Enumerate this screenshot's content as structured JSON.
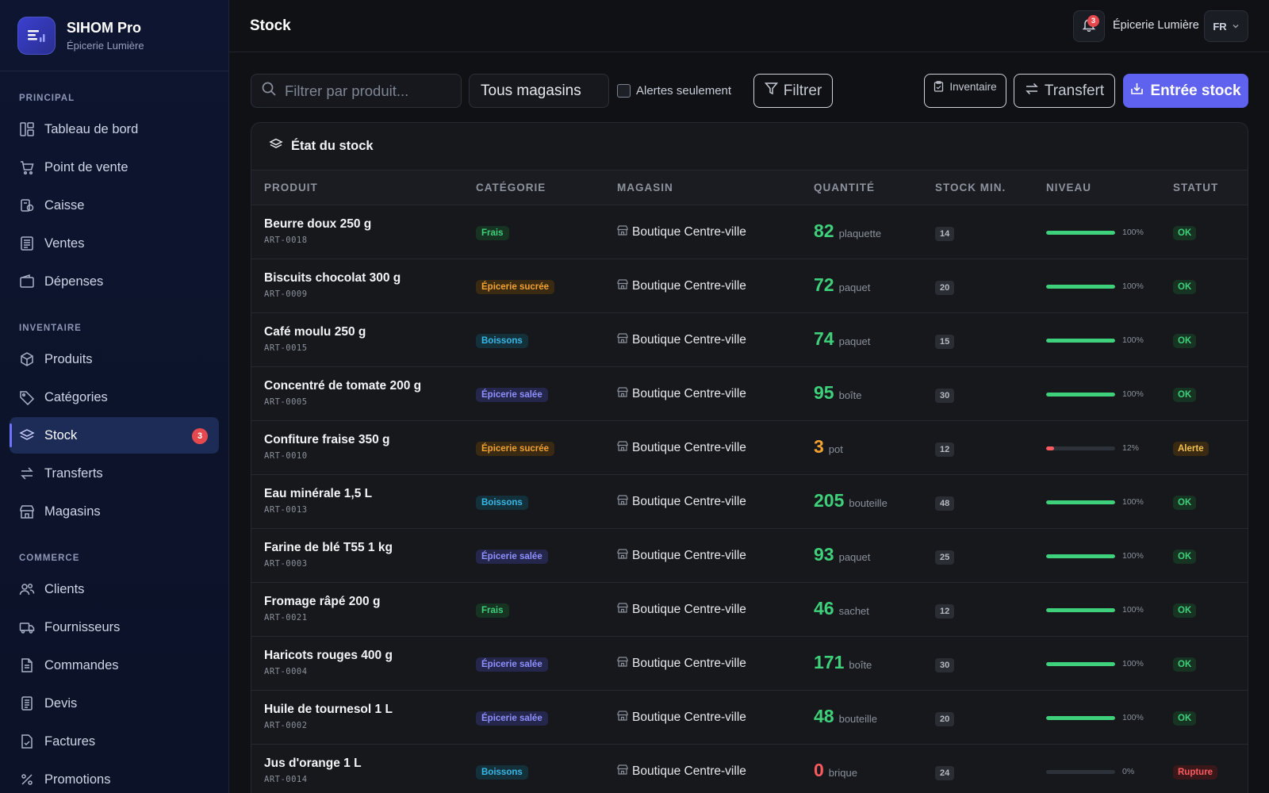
{
  "brand": {
    "title": "SIHOM Pro",
    "subtitle": "Épicerie Lumière"
  },
  "sidebar": {
    "sections": [
      {
        "label": "PRINCIPAL",
        "items": [
          {
            "label": "Tableau de bord",
            "icon": "dashboard-icon"
          },
          {
            "label": "Point de vente",
            "icon": "cart-icon"
          },
          {
            "label": "Caisse",
            "icon": "cash-register-icon"
          },
          {
            "label": "Ventes",
            "icon": "receipt-icon"
          },
          {
            "label": "Dépenses",
            "icon": "wallet-icon"
          }
        ]
      },
      {
        "label": "INVENTAIRE",
        "items": [
          {
            "label": "Produits",
            "icon": "box-icon"
          },
          {
            "label": "Catégories",
            "icon": "tag-icon"
          },
          {
            "label": "Stock",
            "icon": "layers-icon",
            "active": true,
            "badge": "3"
          },
          {
            "label": "Transferts",
            "icon": "transfer-icon"
          },
          {
            "label": "Magasins",
            "icon": "store-icon"
          }
        ]
      },
      {
        "label": "COMMERCE",
        "items": [
          {
            "label": "Clients",
            "icon": "users-icon"
          },
          {
            "label": "Fournisseurs",
            "icon": "truck-icon"
          },
          {
            "label": "Commandes",
            "icon": "document-icon"
          },
          {
            "label": "Devis",
            "icon": "document-lines-icon"
          },
          {
            "label": "Factures",
            "icon": "invoice-icon"
          },
          {
            "label": "Promotions",
            "icon": "percent-icon"
          }
        ]
      }
    ]
  },
  "header": {
    "title": "Stock",
    "notifications": "3",
    "store": "Épicerie Lumière",
    "language": "FR"
  },
  "toolbar": {
    "search_placeholder": "Filtrer par produit...",
    "store_select": "Tous magasins",
    "alerts_only": "Alertes seulement",
    "filter": "Filtrer",
    "inventory": "Inventaire",
    "transfer": "Transfert",
    "stock_entry": "Entrée stock"
  },
  "panel": {
    "title": "État du stock",
    "columns": [
      "PRODUIT",
      "CATÉGORIE",
      "MAGASIN",
      "QUANTITÉ",
      "STOCK MIN.",
      "NIVEAU",
      "STATUT"
    ],
    "rows": [
      {
        "name": "Beurre doux 250 g",
        "code": "ART-0018",
        "category": "Frais",
        "cat_type": "frais",
        "store": "Boutique Centre-ville",
        "qty": "82",
        "unit": "plaquette",
        "min": "14",
        "level": 1.0,
        "level_label": "100%",
        "status": "OK",
        "status_type": "ok"
      },
      {
        "name": "Biscuits chocolat 300 g",
        "code": "ART-0009",
        "category": "Épicerie sucrée",
        "cat_type": "sucree",
        "store": "Boutique Centre-ville",
        "qty": "72",
        "unit": "paquet",
        "min": "20",
        "level": 1.0,
        "level_label": "100%",
        "status": "OK",
        "status_type": "ok"
      },
      {
        "name": "Café moulu 250 g",
        "code": "ART-0015",
        "category": "Boissons",
        "cat_type": "boissons",
        "store": "Boutique Centre-ville",
        "qty": "74",
        "unit": "paquet",
        "min": "15",
        "level": 1.0,
        "level_label": "100%",
        "status": "OK",
        "status_type": "ok"
      },
      {
        "name": "Concentré de tomate 200 g",
        "code": "ART-0005",
        "category": "Épicerie salée",
        "cat_type": "salee",
        "store": "Boutique Centre-ville",
        "qty": "95",
        "unit": "boîte",
        "min": "30",
        "level": 1.0,
        "level_label": "100%",
        "status": "OK",
        "status_type": "ok"
      },
      {
        "name": "Confiture fraise 350 g",
        "code": "ART-0010",
        "category": "Épicerie sucrée",
        "cat_type": "sucree",
        "store": "Boutique Centre-ville",
        "qty": "3",
        "unit": "pot",
        "min": "12",
        "level": 0.12,
        "level_label": "12%",
        "status": "Alerte",
        "status_type": "alerte"
      },
      {
        "name": "Eau minérale 1,5 L",
        "code": "ART-0013",
        "category": "Boissons",
        "cat_type": "boissons",
        "store": "Boutique Centre-ville",
        "qty": "205",
        "unit": "bouteille",
        "min": "48",
        "level": 1.0,
        "level_label": "100%",
        "status": "OK",
        "status_type": "ok"
      },
      {
        "name": "Farine de blé T55 1 kg",
        "code": "ART-0003",
        "category": "Épicerie salée",
        "cat_type": "salee",
        "store": "Boutique Centre-ville",
        "qty": "93",
        "unit": "paquet",
        "min": "25",
        "level": 1.0,
        "level_label": "100%",
        "status": "OK",
        "status_type": "ok"
      },
      {
        "name": "Fromage râpé 200 g",
        "code": "ART-0021",
        "category": "Frais",
        "cat_type": "frais",
        "store": "Boutique Centre-ville",
        "qty": "46",
        "unit": "sachet",
        "min": "12",
        "level": 1.0,
        "level_label": "100%",
        "status": "OK",
        "status_type": "ok"
      },
      {
        "name": "Haricots rouges 400 g",
        "code": "ART-0004",
        "category": "Épicerie salée",
        "cat_type": "salee",
        "store": "Boutique Centre-ville",
        "qty": "171",
        "unit": "boîte",
        "min": "30",
        "level": 1.0,
        "level_label": "100%",
        "status": "OK",
        "status_type": "ok"
      },
      {
        "name": "Huile de tournesol 1 L",
        "code": "ART-0002",
        "category": "Épicerie salée",
        "cat_type": "salee",
        "store": "Boutique Centre-ville",
        "qty": "48",
        "unit": "bouteille",
        "min": "20",
        "level": 1.0,
        "level_label": "100%",
        "status": "OK",
        "status_type": "ok"
      },
      {
        "name": "Jus d'orange 1 L",
        "code": "ART-0014",
        "category": "Boissons",
        "cat_type": "boissons",
        "store": "Boutique Centre-ville",
        "qty": "0",
        "unit": "brique",
        "min": "24",
        "level": 0.0,
        "level_label": "0%",
        "status": "Rupture",
        "status_type": "rupture"
      }
    ]
  },
  "colors": {
    "accent": "#5f62ee",
    "ok": "#3ed07a",
    "warning": "#f2a230",
    "danger": "#ff5a5f"
  }
}
